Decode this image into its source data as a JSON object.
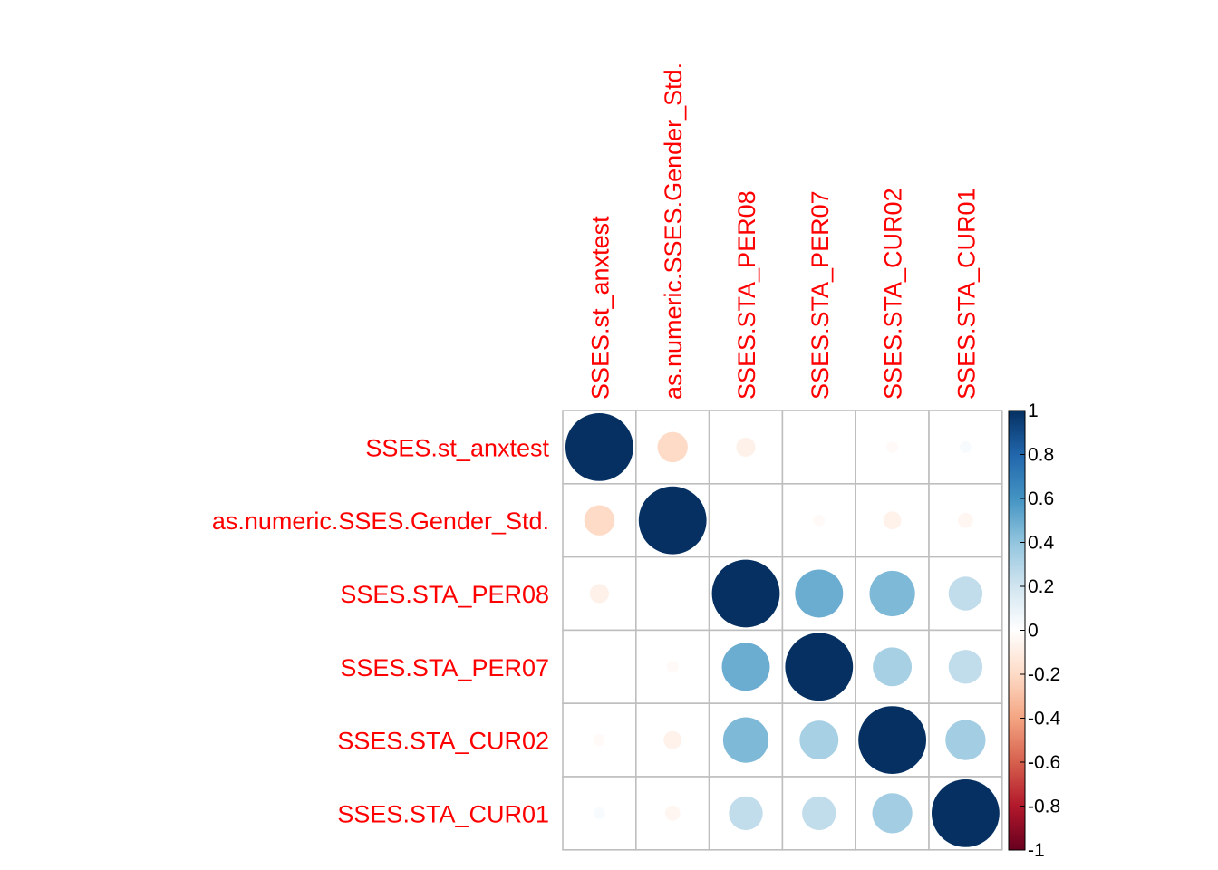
{
  "chart_data": {
    "type": "heatmap",
    "style": "correlation-circles",
    "variables": [
      "SSES.st_anxtest",
      "as.numeric.SSES.Gender_Std.",
      "SSES.STA_PER08",
      "SSES.STA_PER07",
      "SSES.STA_CUR02",
      "SSES.STA_CUR01"
    ],
    "matrix": [
      [
        1.0,
        -0.2,
        -0.08,
        0.0,
        -0.03,
        0.03
      ],
      [
        -0.2,
        1.0,
        0.0,
        -0.03,
        -0.07,
        -0.05
      ],
      [
        -0.08,
        0.0,
        1.0,
        0.5,
        0.45,
        0.25
      ],
      [
        0.0,
        -0.03,
        0.5,
        1.0,
        0.33,
        0.25
      ],
      [
        -0.03,
        -0.07,
        0.45,
        0.33,
        1.0,
        0.35
      ],
      [
        0.03,
        -0.05,
        0.25,
        0.25,
        0.35,
        1.0
      ]
    ],
    "colorbar": {
      "range": [
        -1,
        1
      ],
      "ticks": [
        "1",
        "0.8",
        "0.6",
        "0.4",
        "0.2",
        "0",
        "-0.2",
        "-0.4",
        "-0.6",
        "-0.8",
        "-1"
      ]
    },
    "label_color": "#FF0000",
    "grid": true,
    "legend_placement": "right"
  }
}
